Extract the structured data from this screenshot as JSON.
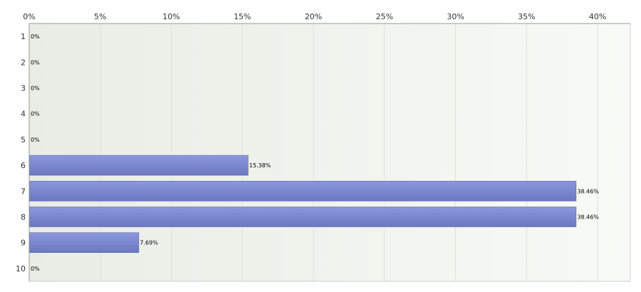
{
  "chart_data": {
    "type": "bar",
    "orientation": "horizontal",
    "categories": [
      "1",
      "2",
      "3",
      "4",
      "5",
      "6",
      "7",
      "8",
      "9",
      "10"
    ],
    "values": [
      0,
      0,
      0,
      0,
      0,
      15.38,
      38.46,
      38.46,
      7.69,
      0
    ],
    "value_labels": [
      "0%",
      "0%",
      "0%",
      "0%",
      "0%",
      "15.38%",
      "38.46%",
      "38.46%",
      "7.69%",
      "0%"
    ],
    "x_ticks": [
      0,
      5,
      10,
      15,
      20,
      25,
      30,
      35,
      40
    ],
    "x_tick_labels": [
      "0%",
      "5%",
      "10%",
      "15%",
      "20%",
      "25%",
      "30%",
      "35%",
      "40%"
    ],
    "xlim": [
      0,
      42.3
    ],
    "axis_position": "top",
    "grid": true,
    "title": "",
    "xlabel": "",
    "ylabel": "",
    "colors": {
      "bar": "#7b87cf",
      "bar_top": "#8c98dc",
      "bar_bottom": "#6c78bf",
      "background_left": "#e9ede5",
      "background_right": "#f8faf5",
      "grid": "#dfe3dc",
      "axis": "#999999"
    }
  }
}
